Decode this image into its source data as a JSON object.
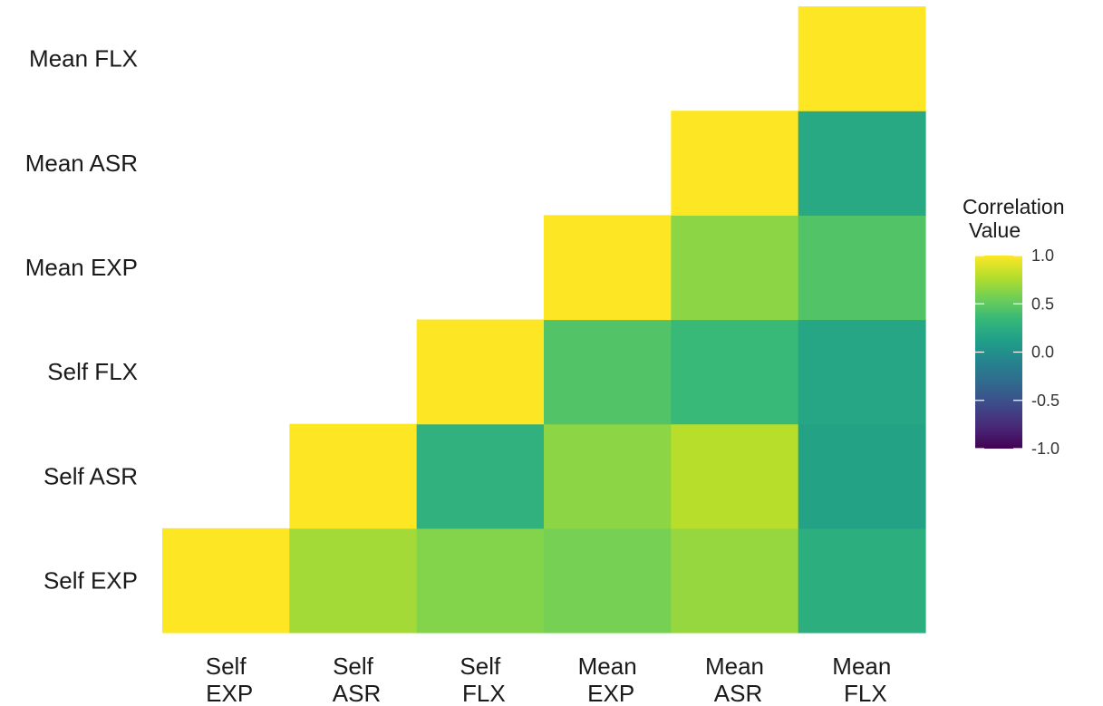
{
  "chart_data": {
    "type": "heatmap",
    "title": "",
    "x_labels": [
      [
        "Self",
        "EXP"
      ],
      [
        "Self",
        "ASR"
      ],
      [
        "Self",
        "FLX"
      ],
      [
        "Mean",
        "EXP"
      ],
      [
        "Mean",
        "ASR"
      ],
      [
        "Mean",
        "FLX"
      ]
    ],
    "y_labels": [
      "Self EXP",
      "Self ASR",
      "Self FLX",
      "Mean EXP",
      "Mean ASR",
      "Mean FLX"
    ],
    "matrix": [
      [
        1.0,
        0.72,
        0.62,
        0.58,
        0.68,
        0.25
      ],
      [
        null,
        1.0,
        0.28,
        0.65,
        0.78,
        0.15
      ],
      [
        null,
        null,
        1.0,
        0.45,
        0.35,
        0.18
      ],
      [
        null,
        null,
        null,
        1.0,
        0.65,
        0.45
      ],
      [
        null,
        null,
        null,
        null,
        1.0,
        0.2
      ],
      [
        null,
        null,
        null,
        null,
        null,
        1.0
      ]
    ],
    "legend": {
      "title_lines": [
        "Correlation",
        "Value"
      ],
      "ticks": [
        1.0,
        0.5,
        0.0,
        -0.5,
        -1.0
      ],
      "tick_labels": [
        "1.0",
        "0.5",
        "0.0",
        "-0.5",
        "-1.0"
      ],
      "range": [
        -1,
        1
      ],
      "position": "right"
    },
    "colorscale": "viridis",
    "colorscale_stops": [
      "#440154",
      "#482878",
      "#3e4989",
      "#31688e",
      "#26828e",
      "#1f9e89",
      "#35b779",
      "#6ece58",
      "#b5de2b",
      "#fde725"
    ]
  }
}
